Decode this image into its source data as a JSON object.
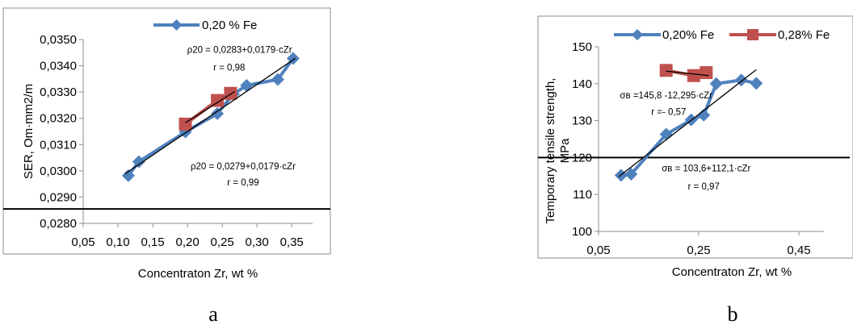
{
  "chart_data": [
    {
      "panel": "a",
      "type": "scatter",
      "caption": "a",
      "title": "",
      "xlabel": "Concentraton Zr, wt %",
      "ylabel": "SER, Om·mm2/m",
      "xlim": [
        0.05,
        0.38
      ],
      "ylim": [
        0.028,
        0.035
      ],
      "x_ticks": [
        0.05,
        0.1,
        0.15,
        0.2,
        0.25,
        0.3,
        0.35
      ],
      "x_tick_labels": [
        "0,05",
        "0,10",
        "0,15",
        "0,20",
        "0,25",
        "0,30",
        "0,35"
      ],
      "y_ticks": [
        0.028,
        0.029,
        0.03,
        0.031,
        0.032,
        0.033,
        0.034,
        0.035
      ],
      "y_tick_labels": [
        "0,0280",
        "0,0290",
        "0,0300",
        "0,0310",
        "0,0320",
        "0,0330",
        "0,0340",
        "0,0350"
      ],
      "grid": false,
      "legend_position": "top",
      "series": [
        {
          "name": "0,20 % Fe",
          "color": "#4f81bd",
          "marker": "diamond",
          "x": [
            0.115,
            0.13,
            0.197,
            0.243,
            0.266,
            0.285,
            0.33,
            0.352
          ],
          "y": [
            0.02982,
            0.03035,
            0.03148,
            0.03218,
            0.03292,
            0.03325,
            0.03348,
            0.03428
          ]
        },
        {
          "name": "",
          "color": "#c0504d",
          "marker": "square",
          "x": [
            0.197,
            0.243,
            0.262
          ],
          "y": [
            0.03178,
            0.03268,
            0.03295
          ]
        }
      ],
      "trendlines": [
        {
          "x": [
            0.11,
            0.355
          ],
          "y": [
            0.02988,
            0.03428
          ],
          "color": "#000000"
        },
        {
          "x": [
            0.197,
            0.268
          ],
          "y": [
            0.03183,
            0.03302
          ],
          "color": "#000000"
        }
      ],
      "hline": {
        "y": 0.02855,
        "color": "#000000"
      },
      "annotations": [
        {
          "text": "ρ20 = 0,0283+0,0179·cZr",
          "x": 0.275,
          "y": 0.0345
        },
        {
          "text": "r = 0,98",
          "x": 0.26,
          "y": 0.03382
        },
        {
          "text": "ρ20 = 0,0279+0,0179·cZr",
          "x": 0.28,
          "y": 0.03005
        },
        {
          "text": "r = 0,99",
          "x": 0.28,
          "y": 0.02945
        }
      ]
    },
    {
      "panel": "b",
      "type": "scatter",
      "caption": "b",
      "title": "",
      "xlabel": "Concentraton Zr, wt %",
      "ylabel": "Temporary  tensile strength, MPa",
      "ylabel_lines": [
        "Temporary  tensile strength,",
        "MPa"
      ],
      "xlim": [
        0.05,
        0.5
      ],
      "ylim": [
        100,
        150
      ],
      "x_ticks": [
        0.05,
        0.25,
        0.45
      ],
      "x_tick_labels": [
        "0,05",
        "0,25",
        "0,45"
      ],
      "y_ticks": [
        100,
        110,
        120,
        130,
        140,
        150
      ],
      "y_tick_labels": [
        "100",
        "110",
        "120",
        "130",
        "140",
        "150"
      ],
      "grid": false,
      "legend_position": "top",
      "series": [
        {
          "name": "0,20% Fe",
          "color": "#4f81bd",
          "marker": "diamond",
          "x": [
            0.095,
            0.115,
            0.185,
            0.235,
            0.26,
            0.285,
            0.335,
            0.365
          ],
          "y": [
            115.2,
            115.5,
            126.3,
            130.2,
            131.5,
            140.0,
            141.0,
            140.1
          ]
        },
        {
          "name": "0,28% Fe",
          "color": "#c0504d",
          "marker": "square",
          "x": [
            0.185,
            0.24,
            0.265
          ],
          "y": [
            143.6,
            142.2,
            143.0
          ]
        }
      ],
      "trendlines": [
        {
          "x": [
            0.09,
            0.365
          ],
          "y": [
            114.8,
            143.8
          ],
          "color": "#000000"
        },
        {
          "x": [
            0.185,
            0.27
          ],
          "y": [
            143.4,
            142.2
          ],
          "color": "#000000"
        }
      ],
      "hline": {
        "y": 120,
        "color": "#000000"
      },
      "annotations": [
        {
          "text": "σв =145,8 -12,295·cZr",
          "x": 0.185,
          "y": 136.0
        },
        {
          "text": "r =- 0,57",
          "x": 0.19,
          "y": 131.5
        },
        {
          "text": "σв = 103,6+112,1·cZr",
          "x": 0.265,
          "y": 116.3
        },
        {
          "text": "r = 0,97",
          "x": 0.26,
          "y": 111.3
        }
      ]
    }
  ]
}
